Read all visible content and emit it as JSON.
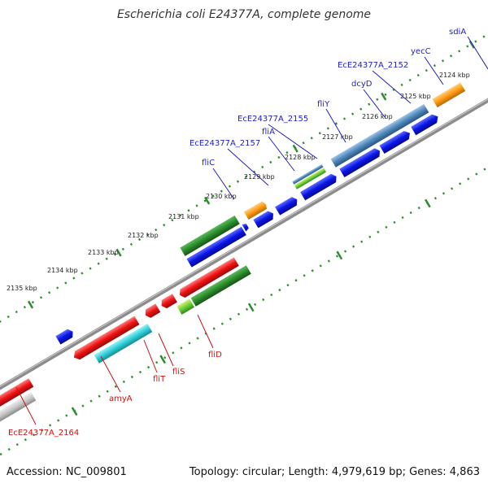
{
  "title": "Escherichia coli E24377A, complete genome",
  "footer": {
    "accession": "Accession: NC_009801",
    "stats": "Topology: circular; Length: 4,979,619 bp; Genes: 4,863"
  },
  "colors": {
    "backbone": "#8c8c8c",
    "tick": "#2e8b2e",
    "label_blue": "#1f1fbf",
    "label_red": "#cc1111",
    "cds_blue": "#0a14e6",
    "cds_red": "#ee1111",
    "cds_green": "#2a8c2a",
    "cds_teal": "#2ccfd8",
    "cds_orange": "#ff9a14",
    "cds_steel": "#4f86b8",
    "cds_lime": "#6ccf3a",
    "cds_gray": "#c8c8c8"
  },
  "kbp_labels": [
    "2124 kbp",
    "2125 kbp",
    "2126 kbp",
    "2127 kbp",
    "2128 kbp",
    "2129 kbp",
    "2130 kbp",
    "2131 kbp",
    "2132 kbp",
    "2133 kbp",
    "2134 kbp",
    "2135 kbp"
  ],
  "genes_top": [
    "sdiA",
    "yecC",
    "EcE24377A_2152",
    "dcyD",
    "fliY",
    "EcE24377A_2155",
    "fliA",
    "EcE24377A_2157",
    "fliC"
  ],
  "genes_bottom": [
    "fliD",
    "fliS",
    "fliT",
    "amyA",
    "EcE24377A_2164"
  ]
}
